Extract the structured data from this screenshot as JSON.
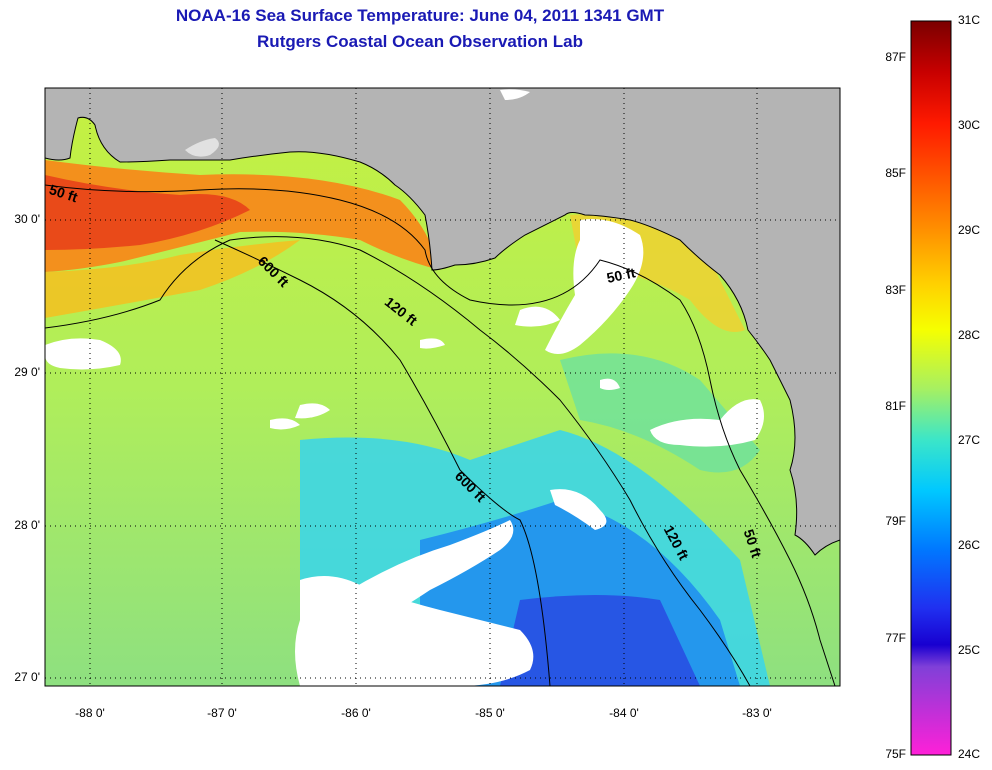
{
  "header": {
    "title": "NOAA-16 Sea Surface Temperature:  June 04, 2011 1341 GMT",
    "subtitle": "Rutgers Coastal Ocean Observation Lab"
  },
  "map": {
    "lat_ticks": [
      "30 0'",
      "29 0'",
      "28 0'",
      "27 0'"
    ],
    "lon_ticks": [
      "-88 0'",
      "-87 0'",
      "-86 0'",
      "-85 0'",
      "-84 0'",
      "-83 0'"
    ],
    "contour_labels": [
      "50 ft",
      "600 ft",
      "120 ft",
      "50 ft",
      "600 ft",
      "120 ft",
      "50 ft"
    ],
    "colors": {
      "land": "#b4b4b4",
      "cloud": "#ffffff",
      "coast": "#000000"
    }
  },
  "colorbar": {
    "fahrenheit": [
      "87F",
      "85F",
      "83F",
      "81F",
      "79F",
      "77F",
      "75F"
    ],
    "celsius": [
      "31C",
      "30C",
      "29C",
      "28C",
      "27C",
      "26C",
      "25C",
      "24C"
    ],
    "range_c": [
      24,
      31
    ]
  }
}
